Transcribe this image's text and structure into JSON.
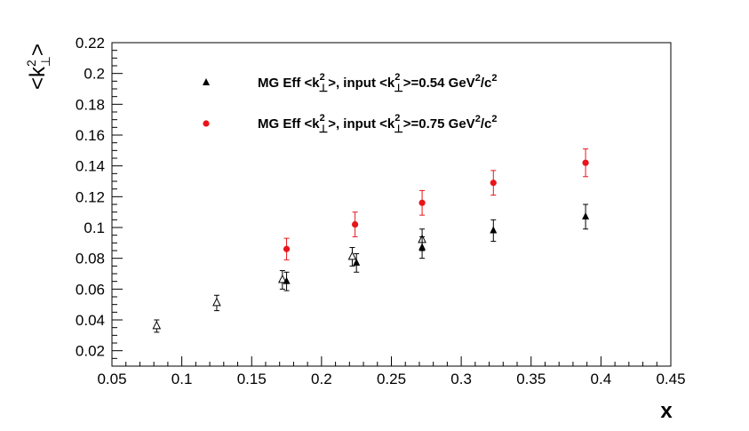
{
  "chart_data": {
    "type": "scatter",
    "xlabel": "x",
    "ylabel": "<k²⊥>",
    "xlim": [
      0.05,
      0.45
    ],
    "ylim": [
      0.01,
      0.22
    ],
    "x_ticks": [
      0.05,
      0.1,
      0.15,
      0.2,
      0.25,
      0.3,
      0.35,
      0.4,
      0.45
    ],
    "x_tick_labels": [
      "0.05",
      "0.1",
      "0.15",
      "0.2",
      "0.25",
      "0.3",
      "0.35",
      "0.4",
      "0.45"
    ],
    "y_ticks": [
      0.02,
      0.04,
      0.06,
      0.08,
      0.1,
      0.12,
      0.14,
      0.16,
      0.18,
      0.2,
      0.22
    ],
    "y_tick_labels": [
      "0.02",
      "0.04",
      "0.06",
      "0.08",
      "0.1",
      "0.12",
      "0.14",
      "0.16",
      "0.18",
      "0.2",
      "0.22"
    ],
    "grid": false,
    "legend_position": "top",
    "series": [
      {
        "name": "MG Eff <k²⊥>, input <k²⊥>=0.54 GeV²/c²",
        "legend_label": {
          "prefix": "MG Eff <k",
          "mid": ">, input <k",
          "suffix": ">=0.54 GeV",
          "tail": "/c"
        },
        "marker": "filled-triangle",
        "color": "#000000",
        "x": [
          0.175,
          0.225,
          0.272,
          0.323,
          0.389
        ],
        "y": [
          0.065,
          0.077,
          0.087,
          0.098,
          0.107
        ],
        "err": [
          0.006,
          0.006,
          0.007,
          0.007,
          0.008
        ]
      },
      {
        "name": "MG Eff <k²⊥>, input <k²⊥>=0.75 GeV²/c²",
        "legend_label": {
          "prefix": "MG Eff <k",
          "mid": ">, input <k",
          "suffix": ">=0.75 GeV",
          "tail": "/c"
        },
        "marker": "filled-circle",
        "color": "#e8151b",
        "x": [
          0.175,
          0.224,
          0.272,
          0.323,
          0.389
        ],
        "y": [
          0.086,
          0.102,
          0.116,
          0.129,
          0.142
        ],
        "err": [
          0.007,
          0.008,
          0.008,
          0.008,
          0.009
        ]
      },
      {
        "name": "",
        "marker": "open-triangle",
        "color": "#000000",
        "x": [
          0.082,
          0.125,
          0.172,
          0.222,
          0.272
        ],
        "y": [
          0.036,
          0.051,
          0.066,
          0.081,
          0.092
        ],
        "err": [
          0.004,
          0.005,
          0.006,
          0.006,
          0.007
        ]
      }
    ]
  }
}
